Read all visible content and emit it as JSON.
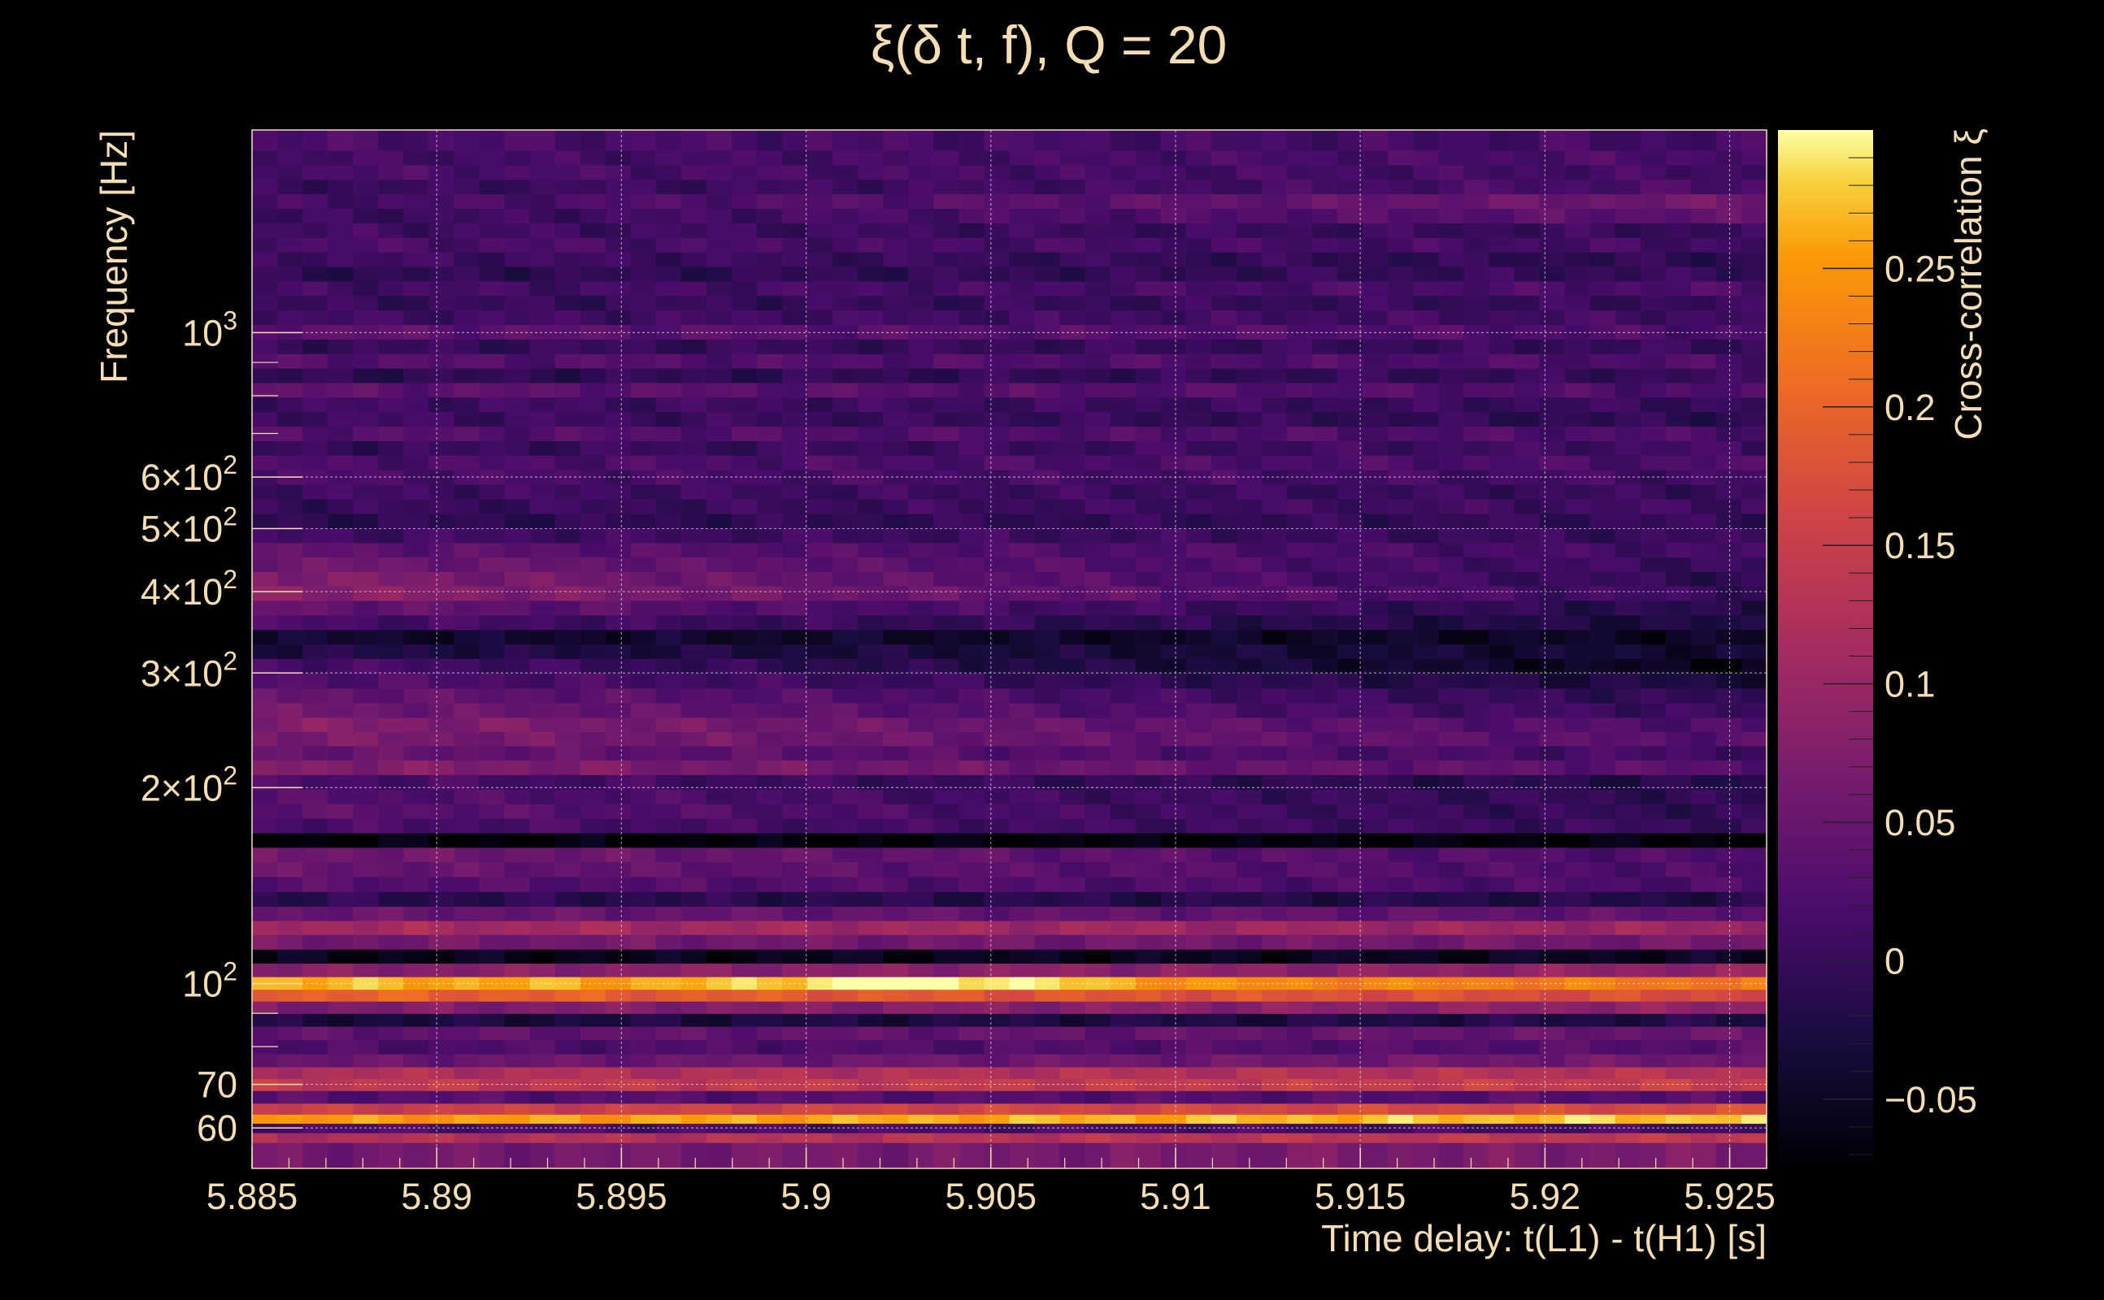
{
  "chart_data": {
    "type": "heatmap",
    "title": "ξ(δ t, f), Q = 20",
    "xlabel": "Time delay: t(L1) - t(H1) [s]",
    "ylabel": "Frequency [Hz]",
    "colorbar_label": "Cross-correlation ξ",
    "xlim": [
      5.885,
      5.926
    ],
    "ylim": [
      52,
      2048
    ],
    "y_scale": "log",
    "grid": true,
    "colormap": "inferno",
    "zlim": [
      -0.075,
      0.3
    ],
    "x_ticks": [
      5.885,
      5.89,
      5.895,
      5.9,
      5.905,
      5.91,
      5.915,
      5.92,
      5.925
    ],
    "x_tick_labels": [
      "5.885",
      "5.89",
      "5.895",
      "5.9",
      "5.905",
      "5.91",
      "5.915",
      "5.92",
      "5.925"
    ],
    "y_ticks": [
      {
        "value": 1000,
        "base": "10",
        "exp": "3"
      },
      {
        "value": 600,
        "base": "6×10",
        "exp": "2"
      },
      {
        "value": 500,
        "base": "5×10",
        "exp": "2"
      },
      {
        "value": 400,
        "base": "4×10",
        "exp": "2"
      },
      {
        "value": 300,
        "base": "3×10",
        "exp": "2"
      },
      {
        "value": 200,
        "base": "2×10",
        "exp": "2"
      },
      {
        "value": 100,
        "base": "10",
        "exp": "2"
      },
      {
        "value": 70,
        "base": "70",
        "exp": ""
      },
      {
        "value": 60,
        "base": "60",
        "exp": ""
      }
    ],
    "colorbar_ticks": [
      0.25,
      0.2,
      0.15,
      0.1,
      0.05,
      0,
      -0.05
    ],
    "colorbar_tick_labels": [
      "0.25",
      "0.2",
      "0.15",
      "0.1",
      "0.05",
      "0",
      "−0.05"
    ],
    "x_bins": 60,
    "bands": [
      {
        "f": 56,
        "start": 0.06,
        "end": 0.07
      },
      {
        "f": 58,
        "start": 0.12,
        "end": 0.14
      },
      {
        "f": 60,
        "start": 0.02,
        "end": 0.01
      },
      {
        "f": 62,
        "start": 0.25,
        "end": 0.28
      },
      {
        "f": 64,
        "start": 0.15,
        "end": 0.17
      },
      {
        "f": 67,
        "start": 0.03,
        "end": 0.03
      },
      {
        "f": 70,
        "start": 0.14,
        "end": 0.15
      },
      {
        "f": 73,
        "start": 0.12,
        "end": 0.13
      },
      {
        "f": 76,
        "start": 0.05,
        "end": 0.06
      },
      {
        "f": 80,
        "start": 0.02,
        "end": 0.03
      },
      {
        "f": 84,
        "start": 0.04,
        "end": 0.05
      },
      {
        "f": 88,
        "start": -0.03,
        "end": -0.02
      },
      {
        "f": 92,
        "start": 0.07,
        "end": 0.09
      },
      {
        "f": 96,
        "start": 0.2,
        "end": 0.17
      },
      {
        "f": 100,
        "start": 0.27,
        "end": 0.22
      },
      {
        "f": 105,
        "start": 0.08,
        "end": 0.09
      },
      {
        "f": 110,
        "start": -0.06,
        "end": -0.05
      },
      {
        "f": 116,
        "start": 0.06,
        "end": 0.06
      },
      {
        "f": 122,
        "start": 0.11,
        "end": 0.1
      },
      {
        "f": 128,
        "start": 0.05,
        "end": 0.04
      },
      {
        "f": 135,
        "start": -0.01,
        "end": -0.02
      },
      {
        "f": 142,
        "start": 0.03,
        "end": 0.02
      },
      {
        "f": 150,
        "start": 0.05,
        "end": 0.02
      },
      {
        "f": 158,
        "start": 0.06,
        "end": 0.02
      },
      {
        "f": 166,
        "start": -0.07,
        "end": -0.07
      },
      {
        "f": 175,
        "start": 0.02,
        "end": 0.0
      },
      {
        "f": 184,
        "start": 0.04,
        "end": -0.01
      },
      {
        "f": 194,
        "start": 0.03,
        "end": -0.01
      },
      {
        "f": 204,
        "start": 0.02,
        "end": -0.02
      },
      {
        "f": 215,
        "start": 0.08,
        "end": 0.03
      },
      {
        "f": 226,
        "start": 0.05,
        "end": 0.01
      },
      {
        "f": 238,
        "start": 0.07,
        "end": 0.03
      },
      {
        "f": 250,
        "start": 0.08,
        "end": 0.02
      },
      {
        "f": 263,
        "start": 0.06,
        "end": 0.0
      },
      {
        "f": 277,
        "start": 0.05,
        "end": -0.01
      },
      {
        "f": 292,
        "start": 0.03,
        "end": -0.03
      },
      {
        "f": 308,
        "start": 0.02,
        "end": -0.06
      },
      {
        "f": 324,
        "start": -0.02,
        "end": -0.04
      },
      {
        "f": 341,
        "start": -0.04,
        "end": -0.05
      },
      {
        "f": 359,
        "start": 0.02,
        "end": -0.03
      },
      {
        "f": 378,
        "start": 0.05,
        "end": -0.02
      },
      {
        "f": 398,
        "start": 0.09,
        "end": 0.0
      },
      {
        "f": 419,
        "start": 0.08,
        "end": -0.01
      },
      {
        "f": 441,
        "start": 0.06,
        "end": 0.0
      },
      {
        "f": 464,
        "start": 0.04,
        "end": 0.01
      },
      {
        "f": 488,
        "start": 0.01,
        "end": 0.0
      },
      {
        "f": 514,
        "start": -0.01,
        "end": 0.0
      },
      {
        "f": 541,
        "start": 0.0,
        "end": 0.01
      },
      {
        "f": 570,
        "start": 0.01,
        "end": 0.0
      },
      {
        "f": 600,
        "start": 0.02,
        "end": 0.01
      },
      {
        "f": 632,
        "start": 0.02,
        "end": 0.02
      },
      {
        "f": 665,
        "start": 0.0,
        "end": 0.01
      },
      {
        "f": 700,
        "start": 0.03,
        "end": 0.02
      },
      {
        "f": 737,
        "start": 0.01,
        "end": -0.01
      },
      {
        "f": 776,
        "start": 0.01,
        "end": 0.0
      },
      {
        "f": 817,
        "start": 0.04,
        "end": 0.02
      },
      {
        "f": 860,
        "start": -0.01,
        "end": 0.0
      },
      {
        "f": 905,
        "start": 0.03,
        "end": 0.02
      },
      {
        "f": 953,
        "start": 0.0,
        "end": 0.0
      },
      {
        "f": 1003,
        "start": 0.04,
        "end": 0.02
      },
      {
        "f": 1056,
        "start": 0.01,
        "end": 0.01
      },
      {
        "f": 1112,
        "start": 0.0,
        "end": 0.0
      },
      {
        "f": 1170,
        "start": 0.01,
        "end": 0.02
      },
      {
        "f": 1232,
        "start": -0.01,
        "end": 0.0
      },
      {
        "f": 1297,
        "start": 0.01,
        "end": -0.01
      },
      {
        "f": 1365,
        "start": 0.02,
        "end": 0.01
      },
      {
        "f": 1437,
        "start": 0.01,
        "end": 0.0
      },
      {
        "f": 1513,
        "start": 0.0,
        "end": 0.04
      },
      {
        "f": 1593,
        "start": 0.01,
        "end": 0.06
      },
      {
        "f": 1677,
        "start": 0.0,
        "end": 0.02
      },
      {
        "f": 1765,
        "start": 0.02,
        "end": 0.01
      },
      {
        "f": 1858,
        "start": 0.01,
        "end": 0.02
      },
      {
        "f": 1956,
        "start": 0.02,
        "end": 0.01
      }
    ]
  }
}
